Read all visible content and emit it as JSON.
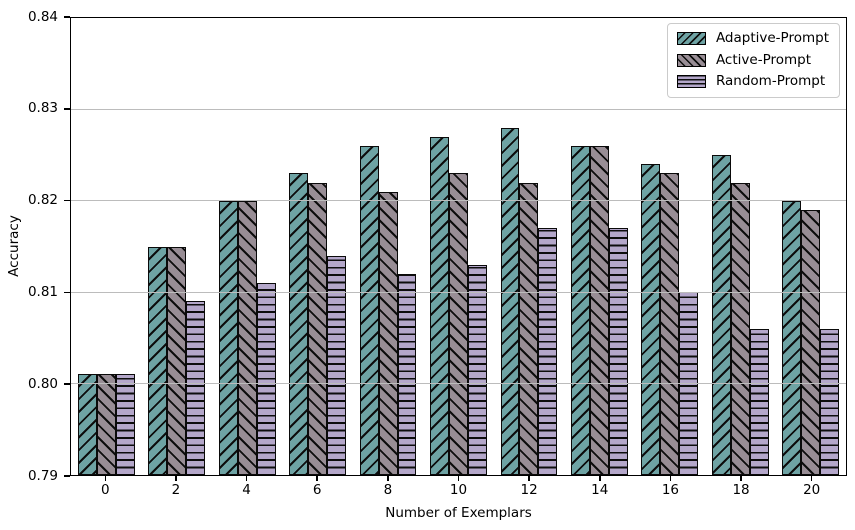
{
  "chart_data": {
    "type": "bar",
    "title": "",
    "xlabel": "Number of Exemplars",
    "ylabel": "Accuracy",
    "categories": [
      "0",
      "2",
      "4",
      "6",
      "8",
      "10",
      "12",
      "14",
      "16",
      "18",
      "20"
    ],
    "series": [
      {
        "name": "Adaptive-Prompt",
        "color": "#6ea3a4",
        "hatch": "/",
        "values": [
          0.801,
          0.815,
          0.82,
          0.823,
          0.826,
          0.827,
          0.828,
          0.826,
          0.824,
          0.825,
          0.82
        ]
      },
      {
        "name": "Active-Prompt",
        "color": "#988d95",
        "hatch": "\\",
        "values": [
          0.801,
          0.815,
          0.82,
          0.822,
          0.821,
          0.823,
          0.822,
          0.826,
          0.823,
          0.822,
          0.819
        ]
      },
      {
        "name": "Random-Prompt",
        "color": "#b4a7ca",
        "hatch": "-",
        "values": [
          0.801,
          0.809,
          0.811,
          0.814,
          0.812,
          0.813,
          0.817,
          0.817,
          0.81,
          0.806,
          0.806
        ]
      }
    ],
    "ylim": [
      0.79,
      0.84
    ],
    "yticks": [
      0.79,
      0.8,
      0.81,
      0.82,
      0.83,
      0.84
    ],
    "grid": "horizontal, drawn above bars",
    "grid_color": "#bcbcbc",
    "legend_position": "upper right",
    "edge_color": "#0a0a0a",
    "background_color": "#ffffff"
  }
}
